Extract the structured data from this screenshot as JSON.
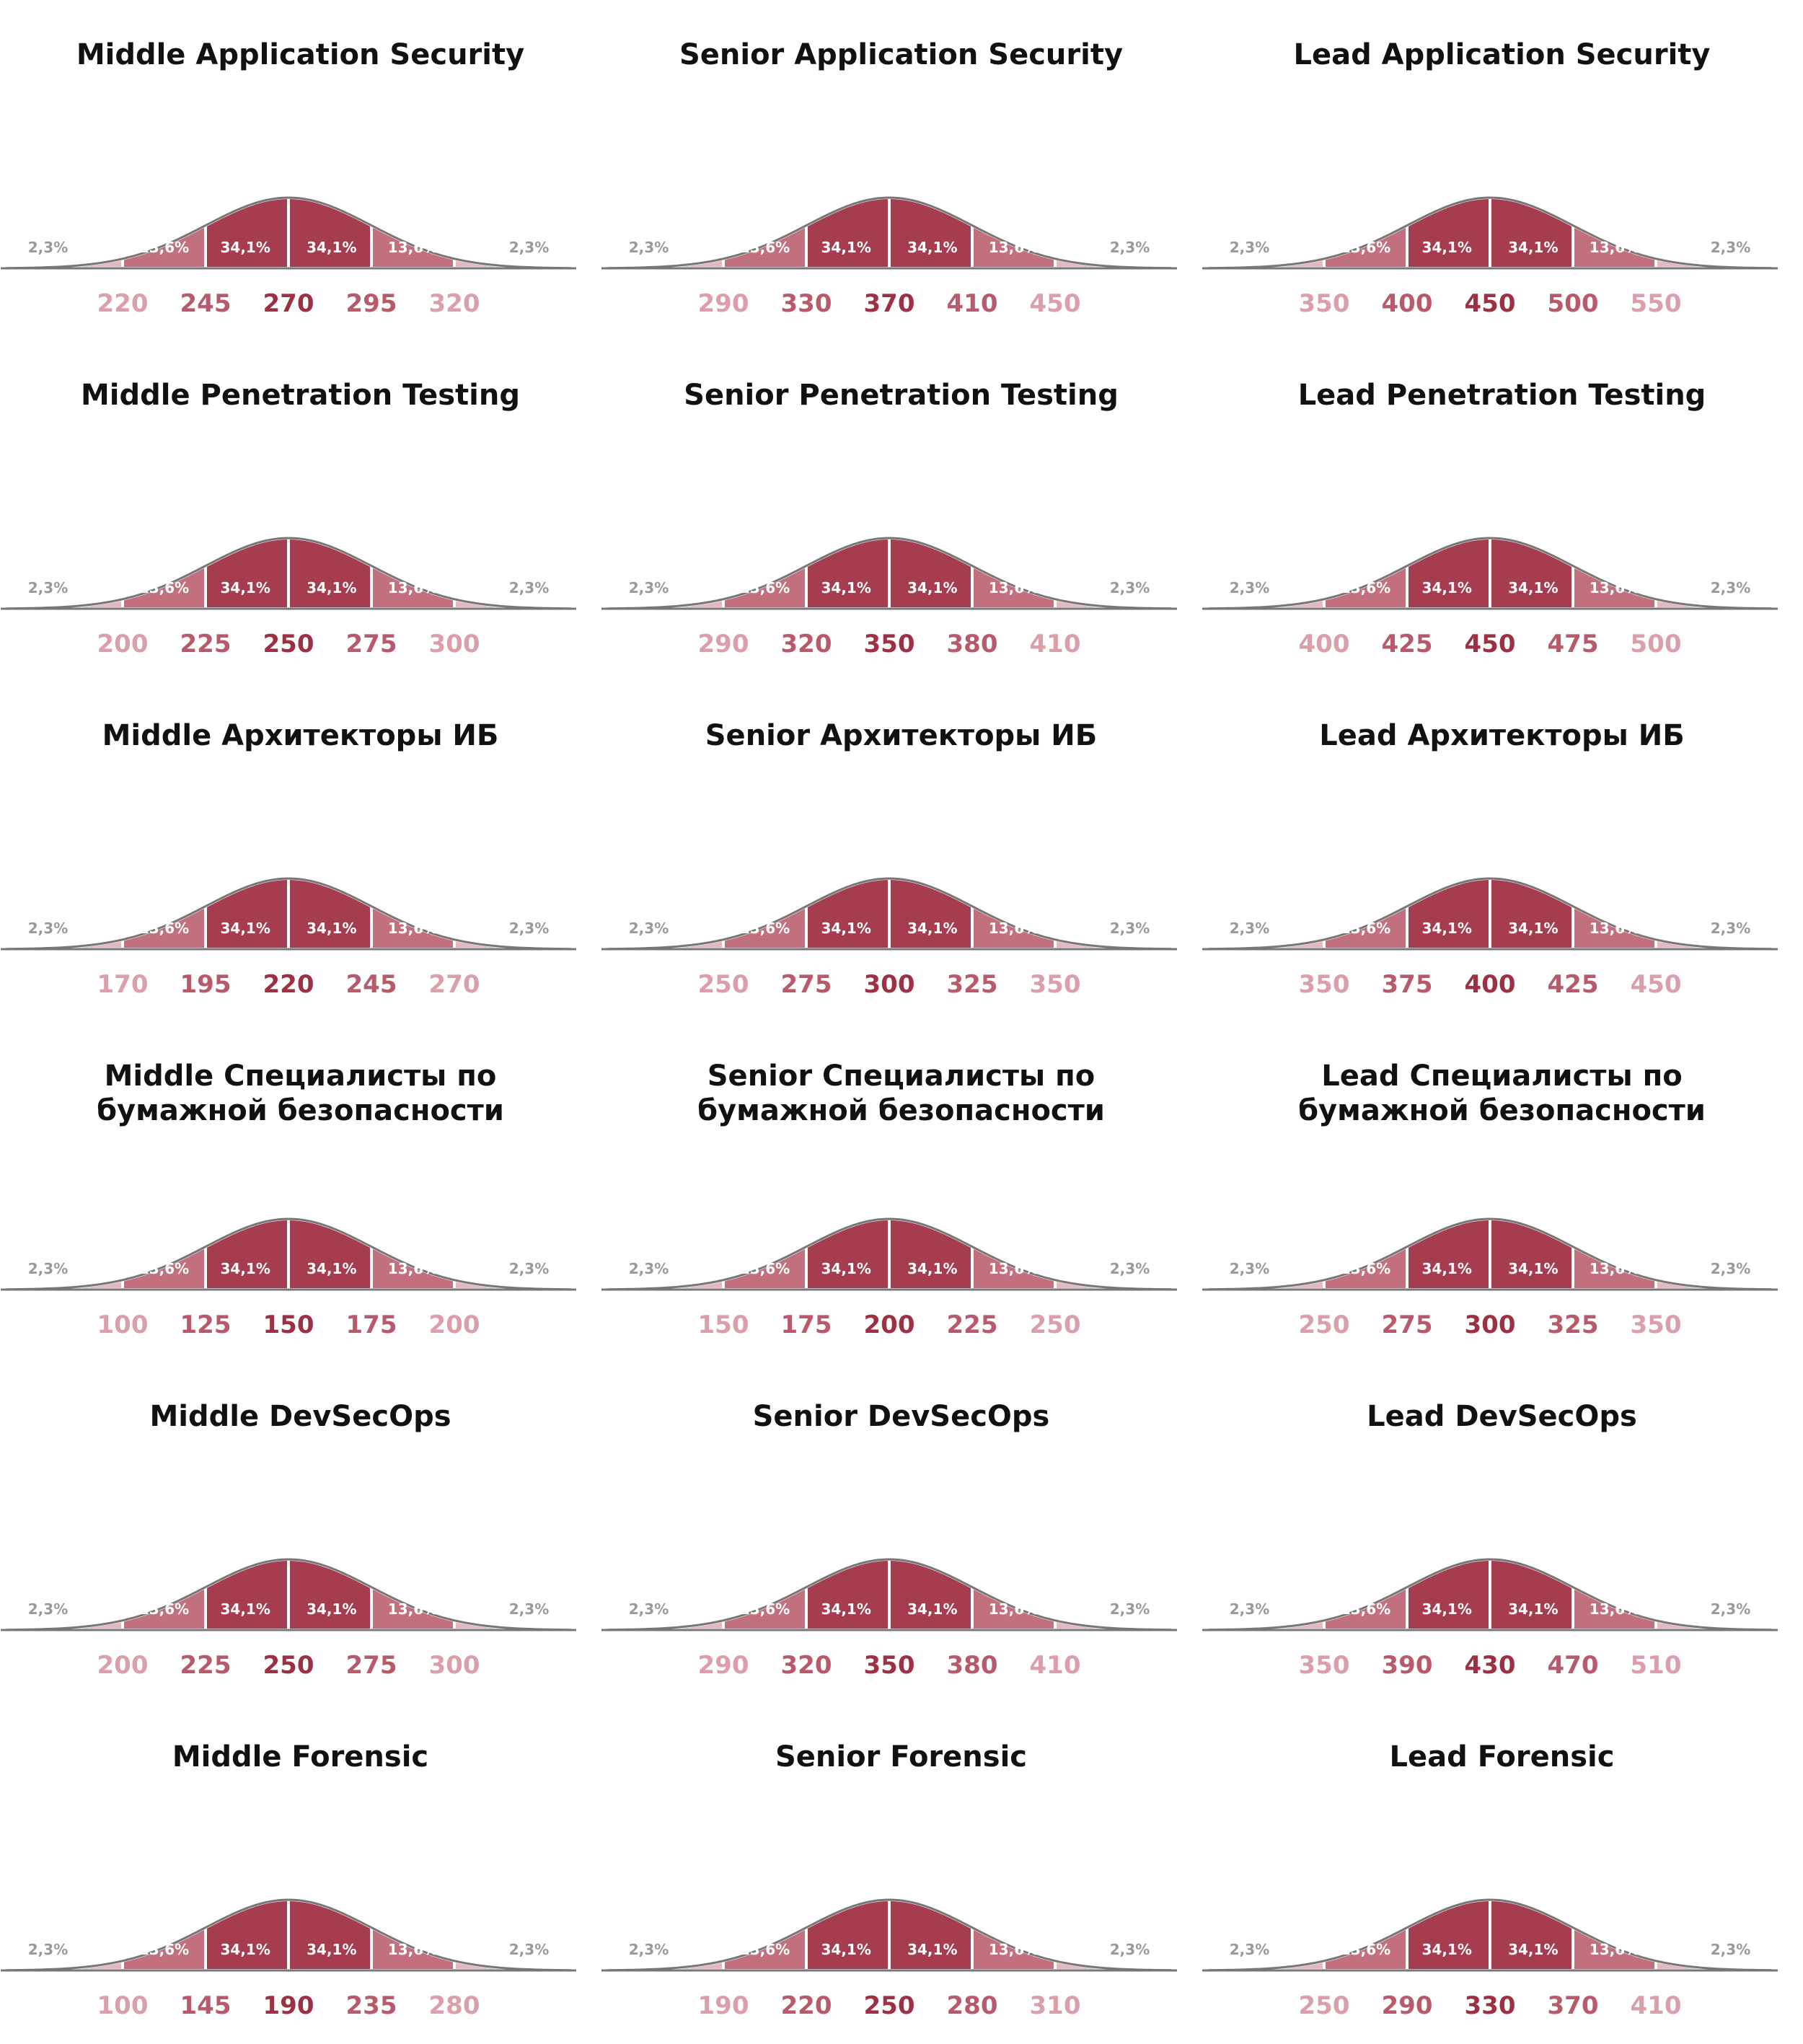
{
  "colors": {
    "inner": "#a53d4f",
    "middle": "#c3707e",
    "outer": "#e6b8bf",
    "outline": "#777777",
    "tick_inner": "#9e3044",
    "tick_middle": "#b85a6b",
    "tick_outer": "#dc9fa9",
    "pct_light": "#ffffff",
    "pct_outer": "#999999"
  },
  "segment_labels": [
    "2,3%",
    "13,6%",
    "34,1%",
    "34,1%",
    "13,6%",
    "2,3%"
  ],
  "chart_data": [
    {
      "type": "area",
      "title_lines": [
        "Middle Application Security"
      ],
      "ticks": [
        220,
        245,
        270,
        295,
        320
      ]
    },
    {
      "type": "area",
      "title_lines": [
        "Senior Application Security"
      ],
      "ticks": [
        290,
        330,
        370,
        410,
        450
      ]
    },
    {
      "type": "area",
      "title_lines": [
        "Lead Application Security"
      ],
      "ticks": [
        350,
        400,
        450,
        500,
        550
      ]
    },
    {
      "type": "area",
      "title_lines": [
        "Middle Penetration Testing"
      ],
      "ticks": [
        200,
        225,
        250,
        275,
        300
      ]
    },
    {
      "type": "area",
      "title_lines": [
        "Senior Penetration Testing"
      ],
      "ticks": [
        290,
        320,
        350,
        380,
        410
      ]
    },
    {
      "type": "area",
      "title_lines": [
        "Lead Penetration Testing"
      ],
      "ticks": [
        400,
        425,
        450,
        475,
        500
      ]
    },
    {
      "type": "area",
      "title_lines": [
        "Middle Архитекторы ИБ"
      ],
      "ticks": [
        170,
        195,
        220,
        245,
        270
      ]
    },
    {
      "type": "area",
      "title_lines": [
        "Senior Архитекторы ИБ"
      ],
      "ticks": [
        250,
        275,
        300,
        325,
        350
      ]
    },
    {
      "type": "area",
      "title_lines": [
        "Lead Архитекторы ИБ"
      ],
      "ticks": [
        350,
        375,
        400,
        425,
        450
      ]
    },
    {
      "type": "area",
      "title_lines": [
        "Middle Специалисты по",
        "бумажной безопасности"
      ],
      "ticks": [
        100,
        125,
        150,
        175,
        200
      ]
    },
    {
      "type": "area",
      "title_lines": [
        "Senior Специалисты по",
        "бумажной безопасности"
      ],
      "ticks": [
        150,
        175,
        200,
        225,
        250
      ]
    },
    {
      "type": "area",
      "title_lines": [
        "Lead Специалисты по",
        "бумажной безопасности"
      ],
      "ticks": [
        250,
        275,
        300,
        325,
        350
      ]
    },
    {
      "type": "area",
      "title_lines": [
        "Middle DevSecOps"
      ],
      "ticks": [
        200,
        225,
        250,
        275,
        300
      ]
    },
    {
      "type": "area",
      "title_lines": [
        "Senior DevSecOps"
      ],
      "ticks": [
        290,
        320,
        350,
        380,
        410
      ]
    },
    {
      "type": "area",
      "title_lines": [
        "Lead DevSecOps"
      ],
      "ticks": [
        350,
        390,
        430,
        470,
        510
      ]
    },
    {
      "type": "area",
      "title_lines": [
        "Middle Forensic"
      ],
      "ticks": [
        100,
        145,
        190,
        235,
        280
      ]
    },
    {
      "type": "area",
      "title_lines": [
        "Senior Forensic"
      ],
      "ticks": [
        190,
        220,
        250,
        280,
        310
      ]
    },
    {
      "type": "area",
      "title_lines": [
        "Lead Forensic"
      ],
      "ticks": [
        250,
        290,
        330,
        370,
        410
      ]
    }
  ]
}
